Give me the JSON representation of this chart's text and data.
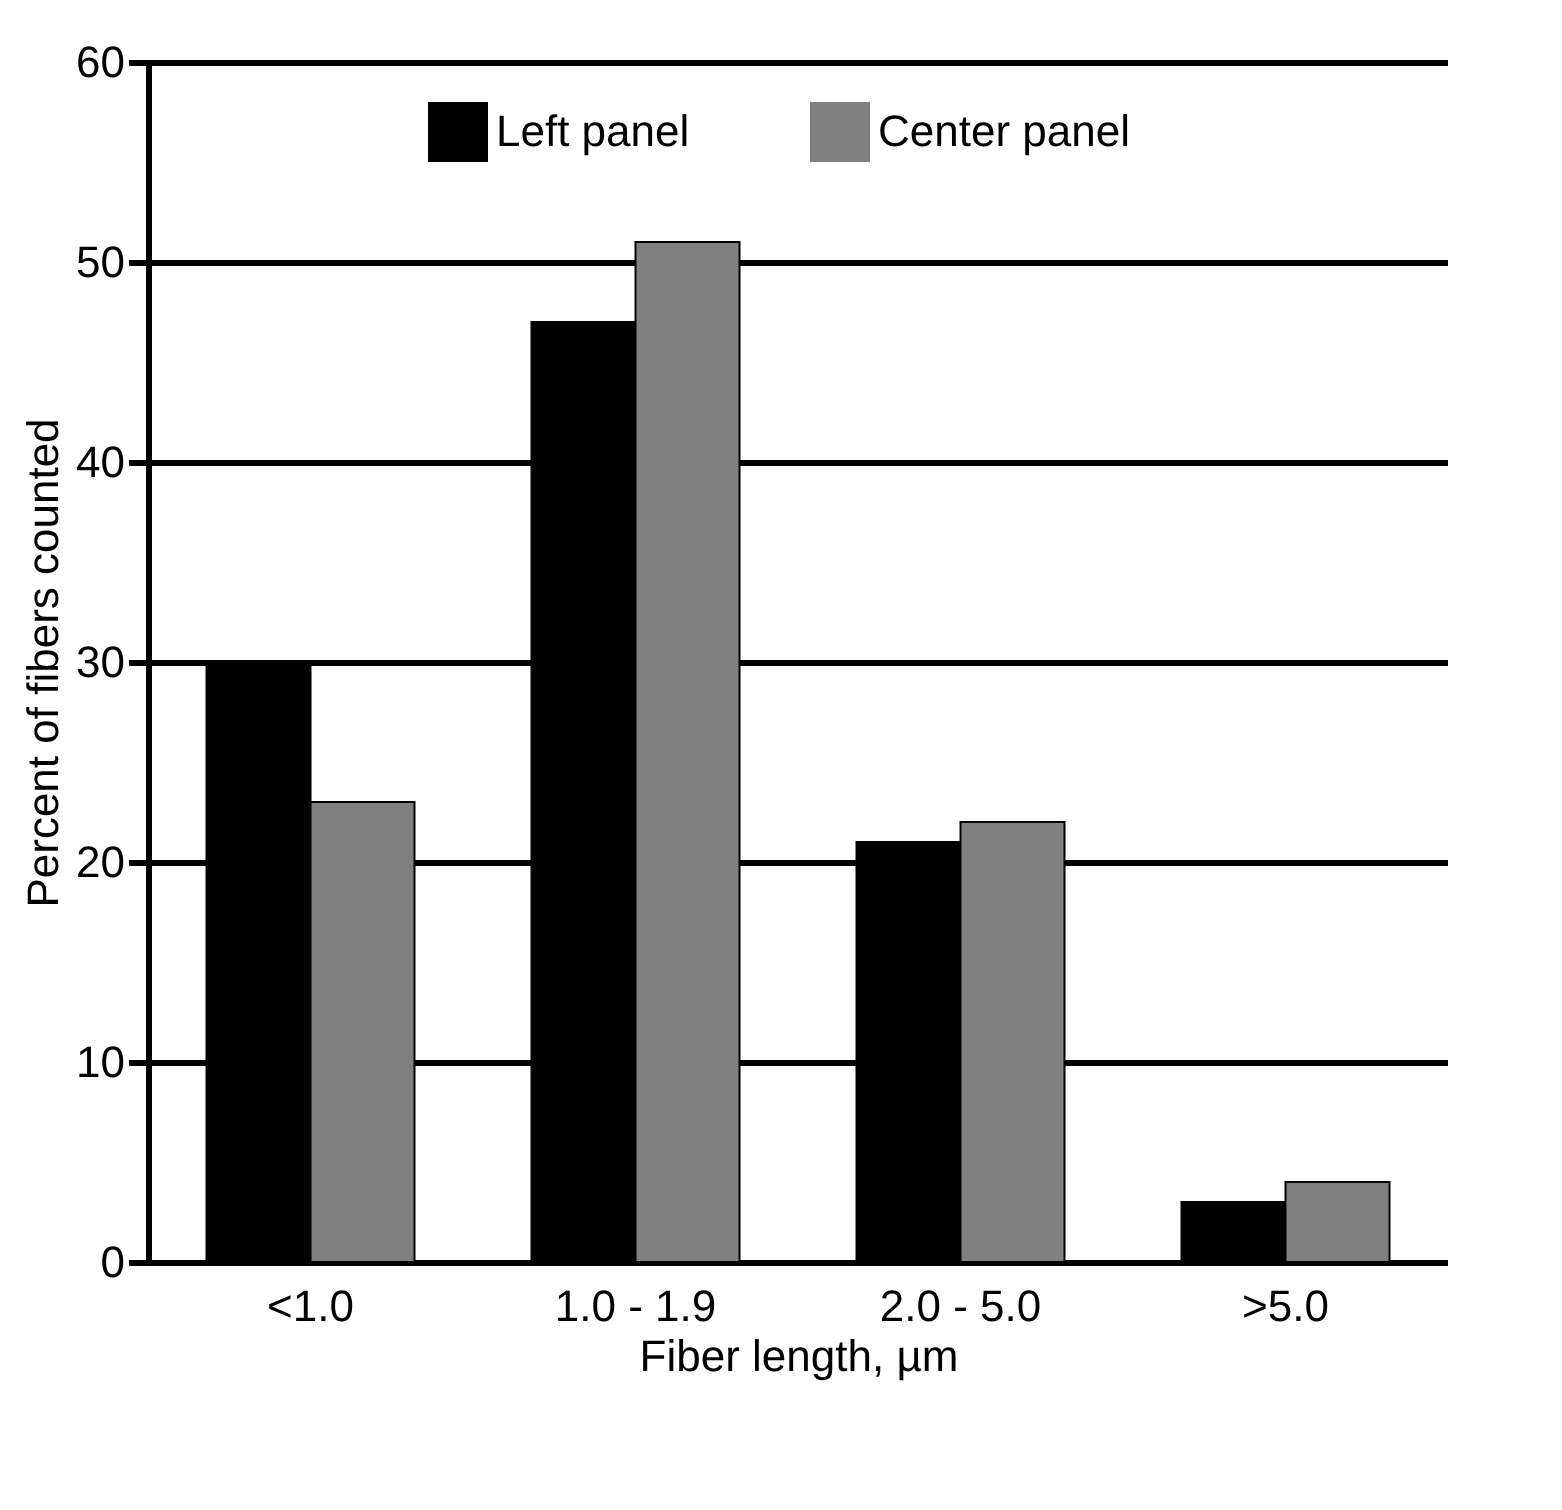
{
  "chart_data": {
    "type": "bar",
    "xlabel": "Fiber length, µm",
    "ylabel": "Percent of fibers counted",
    "categories": [
      "<1.0",
      "1.0 - 1.9",
      "2.0 - 5.0",
      ">5.0"
    ],
    "series": [
      {
        "name": "Left panel",
        "color": "#000000",
        "values": [
          30,
          47,
          21,
          3
        ]
      },
      {
        "name": "Center panel",
        "color": "#808080",
        "values": [
          23,
          51,
          22,
          4
        ]
      }
    ],
    "ylim": [
      0,
      60
    ],
    "yticks": [
      0,
      10,
      20,
      30,
      40,
      50,
      60
    ],
    "grid": "y",
    "legend": "top"
  }
}
